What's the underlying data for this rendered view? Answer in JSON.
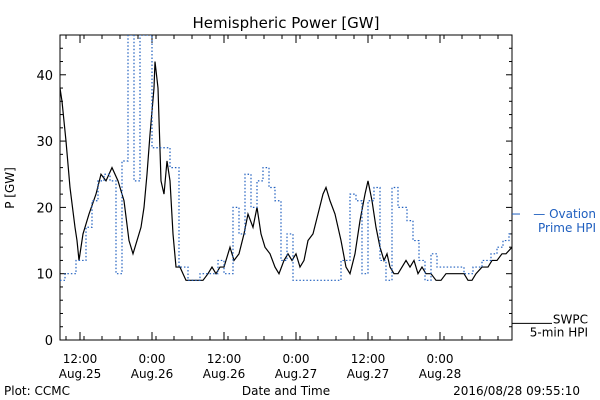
{
  "chart_data": {
    "type": "line",
    "title": "Hemispheric Power [GW]",
    "xlabel": "Date and Time",
    "ylabel": "P [GW]",
    "ylim": [
      0,
      46
    ],
    "xlim": [
      "2016-08-25 08:40",
      "2016-08-28 12:00"
    ],
    "yticks": [
      0,
      10,
      20,
      30,
      40
    ],
    "xticks": [
      {
        "time": "2016-08-25 12:00",
        "hour": "12:00",
        "date": "Aug.25"
      },
      {
        "time": "2016-08-26 00:00",
        "hour": "0:00",
        "date": "Aug.26"
      },
      {
        "time": "2016-08-26 12:00",
        "hour": "12:00",
        "date": "Aug.26"
      },
      {
        "time": "2016-08-27 00:00",
        "hour": "0:00",
        "date": "Aug.27"
      },
      {
        "time": "2016-08-27 12:00",
        "hour": "12:00",
        "date": "Aug.27"
      },
      {
        "time": "2016-08-28 00:00",
        "hour": "0:00",
        "date": "Aug.28"
      }
    ],
    "grid": false,
    "legend_position": "right",
    "series": [
      {
        "name": "SWPC 5-min HPI",
        "label_lines": [
          "SWPC",
          "5-min HPI"
        ],
        "color": "#000000",
        "style": "solid",
        "points": [
          [
            "2016-08-25 08:40",
            38
          ],
          [
            "2016-08-25 09:00",
            36
          ],
          [
            "2016-08-25 09:40",
            30
          ],
          [
            "2016-08-25 10:20",
            23
          ],
          [
            "2016-08-25 10:45",
            20
          ],
          [
            "2016-08-25 11:10",
            17
          ],
          [
            "2016-08-25 11:30",
            15
          ],
          [
            "2016-08-25 11:50",
            12
          ],
          [
            "2016-08-25 12:30",
            16
          ],
          [
            "2016-08-25 13:30",
            19
          ],
          [
            "2016-08-25 14:40",
            22
          ],
          [
            "2016-08-25 15:30",
            25
          ],
          [
            "2016-08-25 16:20",
            24
          ],
          [
            "2016-08-25 17:20",
            26
          ],
          [
            "2016-08-25 18:20",
            24
          ],
          [
            "2016-08-25 19:20",
            21
          ],
          [
            "2016-08-25 20:10",
            15
          ],
          [
            "2016-08-25 20:50",
            13
          ],
          [
            "2016-08-25 21:30",
            15
          ],
          [
            "2016-08-25 22:10",
            17
          ],
          [
            "2016-08-25 22:40",
            20
          ],
          [
            "2016-08-25 23:10",
            25
          ],
          [
            "2016-08-25 23:40",
            31
          ],
          [
            "2016-08-26 00:20",
            38
          ],
          [
            "2016-08-26 00:30",
            42
          ],
          [
            "2016-08-26 01:00",
            38
          ],
          [
            "2016-08-26 01:30",
            24
          ],
          [
            "2016-08-26 02:00",
            22
          ],
          [
            "2016-08-26 02:30",
            27
          ],
          [
            "2016-08-26 03:00",
            24
          ],
          [
            "2016-08-26 03:30",
            16
          ],
          [
            "2016-08-26 04:00",
            11
          ],
          [
            "2016-08-26 04:40",
            11
          ],
          [
            "2016-08-26 05:10",
            10
          ],
          [
            "2016-08-26 05:40",
            9
          ],
          [
            "2016-08-26 06:30",
            9
          ],
          [
            "2016-08-26 07:30",
            9
          ],
          [
            "2016-08-26 08:30",
            9
          ],
          [
            "2016-08-26 09:20",
            10
          ],
          [
            "2016-08-26 10:00",
            11
          ],
          [
            "2016-08-26 10:40",
            10
          ],
          [
            "2016-08-26 11:20",
            11
          ],
          [
            "2016-08-26 12:00",
            11
          ],
          [
            "2016-08-26 13:00",
            14
          ],
          [
            "2016-08-26 13:40",
            12
          ],
          [
            "2016-08-26 14:30",
            13
          ],
          [
            "2016-08-26 15:20",
            16
          ],
          [
            "2016-08-26 16:00",
            19
          ],
          [
            "2016-08-26 16:50",
            17
          ],
          [
            "2016-08-26 17:30",
            20
          ],
          [
            "2016-08-26 18:10",
            16
          ],
          [
            "2016-08-26 18:50",
            14
          ],
          [
            "2016-08-26 19:40",
            13
          ],
          [
            "2016-08-26 20:30",
            11
          ],
          [
            "2016-08-26 21:10",
            10
          ],
          [
            "2016-08-26 22:00",
            12
          ],
          [
            "2016-08-26 22:40",
            13
          ],
          [
            "2016-08-26 23:20",
            12
          ],
          [
            "2016-08-27 00:00",
            13
          ],
          [
            "2016-08-27 00:40",
            11
          ],
          [
            "2016-08-27 01:20",
            12
          ],
          [
            "2016-08-27 02:00",
            15
          ],
          [
            "2016-08-27 02:50",
            16
          ],
          [
            "2016-08-27 03:40",
            19
          ],
          [
            "2016-08-27 04:30",
            22
          ],
          [
            "2016-08-27 05:00",
            23
          ],
          [
            "2016-08-27 05:40",
            21
          ],
          [
            "2016-08-27 06:30",
            19
          ],
          [
            "2016-08-27 07:30",
            15
          ],
          [
            "2016-08-27 08:20",
            11
          ],
          [
            "2016-08-27 09:00",
            10
          ],
          [
            "2016-08-27 09:50",
            13
          ],
          [
            "2016-08-27 10:40",
            18
          ],
          [
            "2016-08-27 11:30",
            22
          ],
          [
            "2016-08-27 12:00",
            24
          ],
          [
            "2016-08-27 12:40",
            21
          ],
          [
            "2016-08-27 13:20",
            17
          ],
          [
            "2016-08-27 14:00",
            14
          ],
          [
            "2016-08-27 14:40",
            12
          ],
          [
            "2016-08-27 15:10",
            13
          ],
          [
            "2016-08-27 15:40",
            11
          ],
          [
            "2016-08-27 16:20",
            10
          ],
          [
            "2016-08-27 17:00",
            10
          ],
          [
            "2016-08-27 17:40",
            11
          ],
          [
            "2016-08-27 18:20",
            12
          ],
          [
            "2016-08-27 19:00",
            11
          ],
          [
            "2016-08-27 19:40",
            12
          ],
          [
            "2016-08-27 20:20",
            10
          ],
          [
            "2016-08-27 21:00",
            11
          ],
          [
            "2016-08-27 21:40",
            10
          ],
          [
            "2016-08-27 22:30",
            10
          ],
          [
            "2016-08-27 23:20",
            9
          ],
          [
            "2016-08-28 00:10",
            9
          ],
          [
            "2016-08-28 01:00",
            10
          ],
          [
            "2016-08-28 02:00",
            10
          ],
          [
            "2016-08-28 03:00",
            10
          ],
          [
            "2016-08-28 04:00",
            10
          ],
          [
            "2016-08-28 04:40",
            9
          ],
          [
            "2016-08-28 05:20",
            9
          ],
          [
            "2016-08-28 06:00",
            10
          ],
          [
            "2016-08-28 07:00",
            11
          ],
          [
            "2016-08-28 08:00",
            11
          ],
          [
            "2016-08-28 08:40",
            12
          ],
          [
            "2016-08-28 09:30",
            12
          ],
          [
            "2016-08-28 10:20",
            13
          ],
          [
            "2016-08-28 11:00",
            13
          ],
          [
            "2016-08-28 12:00",
            14
          ]
        ]
      },
      {
        "name": "Ovation Prime HPI",
        "label_lines": [
          "— Ovation",
          "Prime HPI"
        ],
        "color": "#1f5fbf",
        "style": "dotted-step",
        "points": [
          [
            "2016-08-25 08:40",
            9
          ],
          [
            "2016-08-25 09:30",
            10
          ],
          [
            "2016-08-25 11:20",
            12
          ],
          [
            "2016-08-25 13:00",
            17
          ],
          [
            "2016-08-25 14:00",
            21
          ],
          [
            "2016-08-25 15:00",
            24
          ],
          [
            "2016-08-25 16:00",
            25
          ],
          [
            "2016-08-25 17:00",
            24
          ],
          [
            "2016-08-25 18:00",
            10
          ],
          [
            "2016-08-25 19:00",
            27
          ],
          [
            "2016-08-25 20:00",
            46
          ],
          [
            "2016-08-25 21:00",
            24
          ],
          [
            "2016-08-25 22:00",
            46
          ],
          [
            "2016-08-26 00:00",
            29
          ],
          [
            "2016-08-26 01:30",
            29
          ],
          [
            "2016-08-26 03:00",
            26
          ],
          [
            "2016-08-26 04:30",
            11
          ],
          [
            "2016-08-26 06:00",
            9
          ],
          [
            "2016-08-26 08:00",
            10
          ],
          [
            "2016-08-26 09:00",
            10
          ],
          [
            "2016-08-26 11:00",
            12
          ],
          [
            "2016-08-26 12:00",
            10
          ],
          [
            "2016-08-26 13:30",
            20
          ],
          [
            "2016-08-26 14:30",
            16
          ],
          [
            "2016-08-26 15:30",
            25
          ],
          [
            "2016-08-26 16:30",
            20
          ],
          [
            "2016-08-26 17:30",
            24
          ],
          [
            "2016-08-26 18:30",
            26
          ],
          [
            "2016-08-26 19:30",
            23
          ],
          [
            "2016-08-26 20:30",
            21
          ],
          [
            "2016-08-26 21:30",
            12
          ],
          [
            "2016-08-26 22:30",
            16
          ],
          [
            "2016-08-26 23:30",
            9
          ],
          [
            "2016-08-27 03:00",
            9
          ],
          [
            "2016-08-27 05:30",
            9
          ],
          [
            "2016-08-27 07:30",
            12
          ],
          [
            "2016-08-27 09:00",
            22
          ],
          [
            "2016-08-27 10:00",
            21
          ],
          [
            "2016-08-27 11:00",
            10
          ],
          [
            "2016-08-27 12:00",
            21
          ],
          [
            "2016-08-27 13:00",
            23
          ],
          [
            "2016-08-27 14:00",
            12
          ],
          [
            "2016-08-27 15:00",
            9
          ],
          [
            "2016-08-27 16:00",
            23
          ],
          [
            "2016-08-27 17:00",
            20
          ],
          [
            "2016-08-27 18:30",
            18
          ],
          [
            "2016-08-27 19:30",
            15
          ],
          [
            "2016-08-27 20:30",
            12
          ],
          [
            "2016-08-27 21:30",
            9
          ],
          [
            "2016-08-27 22:30",
            13
          ],
          [
            "2016-08-27 23:30",
            11
          ],
          [
            "2016-08-28 02:00",
            11
          ],
          [
            "2016-08-28 04:00",
            10
          ],
          [
            "2016-08-28 05:30",
            11
          ],
          [
            "2016-08-28 07:00",
            12
          ],
          [
            "2016-08-28 08:30",
            13
          ],
          [
            "2016-08-28 09:30",
            14
          ],
          [
            "2016-08-28 10:30",
            15
          ],
          [
            "2016-08-28 11:30",
            16
          ],
          [
            "2016-08-28 12:00",
            16
          ]
        ]
      }
    ]
  },
  "footer": {
    "plot_credit": "Plot: CCMC",
    "timestamp": "2016/08/28 09:55:10"
  }
}
